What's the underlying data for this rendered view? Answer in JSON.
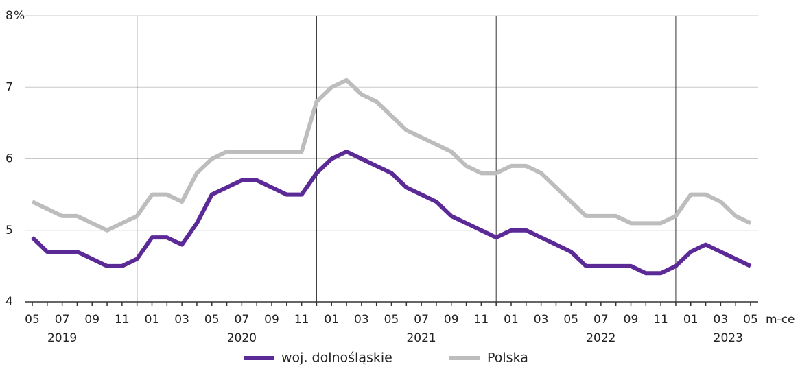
{
  "chart_data": {
    "type": "line",
    "categories": [
      "05",
      null,
      "07",
      null,
      "09",
      null,
      "11",
      null,
      "01",
      null,
      "03",
      null,
      "05",
      null,
      "07",
      null,
      "09",
      null,
      "11",
      null,
      "01",
      null,
      "03",
      null,
      "05",
      null,
      "07",
      null,
      "09",
      null,
      "11",
      null,
      "01",
      null,
      "03",
      null,
      "05",
      null,
      "07",
      null,
      "09",
      null,
      "11",
      null,
      "01",
      null,
      "03",
      null,
      "05"
    ],
    "year_labels": [
      "2019",
      "2020",
      "2021",
      "2022",
      "2023"
    ],
    "x_axis_label": "m-ce",
    "y_unit": "%",
    "series": [
      {
        "name": "woj. dolnośląskie",
        "color": "#5b2a96",
        "values": [
          4.9,
          4.7,
          4.7,
          4.7,
          4.6,
          4.5,
          4.5,
          4.6,
          4.9,
          4.9,
          4.8,
          5.1,
          5.5,
          5.6,
          5.7,
          5.7,
          5.6,
          5.5,
          5.5,
          5.8,
          6.0,
          6.1,
          6.0,
          5.9,
          5.8,
          5.6,
          5.5,
          5.4,
          5.2,
          5.1,
          5.0,
          4.9,
          5.0,
          5.0,
          4.9,
          4.8,
          4.7,
          4.5,
          4.5,
          4.5,
          4.5,
          4.4,
          4.4,
          4.5,
          4.7,
          4.8,
          4.7,
          4.6,
          4.5
        ]
      },
      {
        "name": "Polska",
        "color": "#bdbdbd",
        "values": [
          5.4,
          5.3,
          5.2,
          5.2,
          5.1,
          5.0,
          5.1,
          5.2,
          5.5,
          5.5,
          5.4,
          5.8,
          6.0,
          6.1,
          6.1,
          6.1,
          6.1,
          6.1,
          6.1,
          6.8,
          7.0,
          7.1,
          6.9,
          6.8,
          6.6,
          6.4,
          6.3,
          6.2,
          6.1,
          5.9,
          5.8,
          5.8,
          5.9,
          5.9,
          5.8,
          5.6,
          5.4,
          5.2,
          5.2,
          5.2,
          5.1,
          5.1,
          5.1,
          5.2,
          5.5,
          5.5,
          5.4,
          5.2,
          5.1
        ]
      }
    ],
    "ylim": [
      4,
      8
    ],
    "yticks": [
      4,
      5,
      6,
      7,
      8
    ],
    "grid": true
  }
}
